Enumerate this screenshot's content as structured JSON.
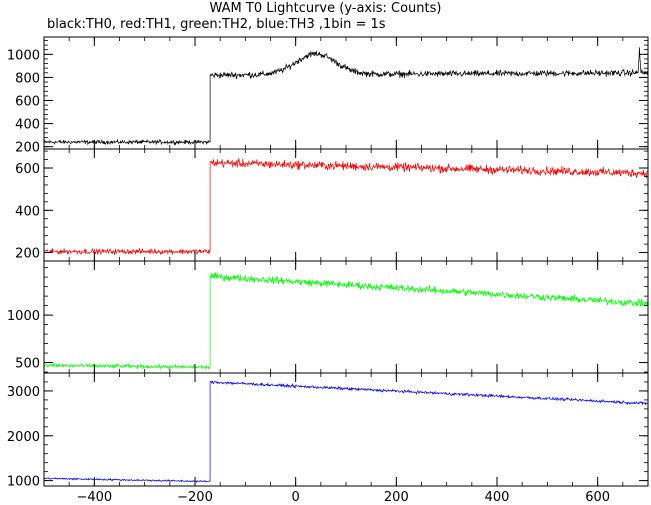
{
  "chart_data": {
    "type": "line",
    "title": "WAM T0 Lightcurve (y-axis: Counts)",
    "subtitle": "black:TH0, red:TH1, green:TH2, blue:TH3 ,1bin = 1s",
    "xlim": [
      -500,
      700
    ],
    "x_ticks": [
      -400,
      -200,
      0,
      200,
      400,
      600
    ],
    "grid": false,
    "panels": [
      {
        "name": "TH0",
        "color": "#000000",
        "ylim": [
          180,
          1150
        ],
        "y_ticks": [
          200,
          400,
          600,
          800,
          1000
        ],
        "segments": [
          {
            "x0": -500,
            "x1": -170,
            "y0": 240,
            "y1": 240,
            "noise": 25
          },
          {
            "x0": -170,
            "x1": 700,
            "y0": 820,
            "y1": 840,
            "noise": 40,
            "bump": {
              "x": 40,
              "width": 55,
              "height": 180
            },
            "spike": {
              "x": 683,
              "height": 200
            }
          }
        ]
      },
      {
        "name": "TH1",
        "color": "#ff0000",
        "ylim": [
          160,
          690
        ],
        "y_ticks": [
          200,
          400,
          600
        ],
        "segments": [
          {
            "x0": -500,
            "x1": -170,
            "y0": 205,
            "y1": 205,
            "noise": 18
          },
          {
            "x0": -170,
            "x1": 700,
            "y0": 625,
            "y1": 575,
            "noise": 30
          }
        ]
      },
      {
        "name": "TH2",
        "color": "#00ff00",
        "ylim": [
          390,
          1570
        ],
        "y_ticks": [
          500,
          1000
        ],
        "segments": [
          {
            "x0": -500,
            "x1": -170,
            "y0": 470,
            "y1": 450,
            "noise": 30
          },
          {
            "x0": -170,
            "x1": 700,
            "y0": 1410,
            "y1": 1120,
            "noise": 55
          }
        ]
      },
      {
        "name": "TH3",
        "color": "#0000ff",
        "ylim": [
          880,
          3400
        ],
        "y_ticks": [
          1000,
          2000,
          3000
        ],
        "segments": [
          {
            "x0": -500,
            "x1": -170,
            "y0": 1050,
            "y1": 980,
            "noise": 28
          },
          {
            "x0": -170,
            "x1": 700,
            "y0": 3200,
            "y1": 2720,
            "noise": 45
          }
        ]
      }
    ]
  }
}
